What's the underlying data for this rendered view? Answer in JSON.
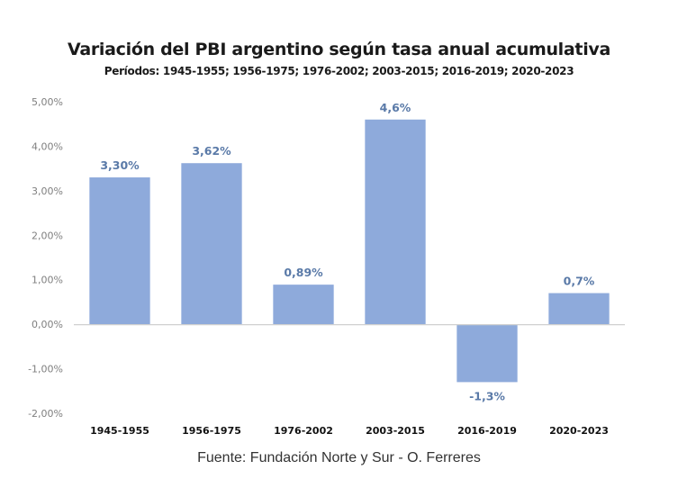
{
  "chart_data": {
    "type": "bar",
    "title": "Variación del PBI argentino según tasa anual acumulativa",
    "subtitle": "Períodos: 1945-1955; 1956-1975; 1976-2002; 2003-2015; 2016-2019; 2020-2023",
    "xlabel": "",
    "ylabel": "",
    "categories": [
      "1945-1955",
      "1956-1975",
      "1976-2002",
      "2003-2015",
      "2016-2019",
      "2020-2023"
    ],
    "values": [
      3.3,
      3.62,
      0.89,
      4.6,
      -1.3,
      0.7
    ],
    "data_labels": [
      "3,30%",
      "3,62%",
      "0,89%",
      "4,6%",
      "-1,3%",
      "0,7%"
    ],
    "ylim": [
      -2,
      5
    ],
    "yticks": [
      5,
      4,
      3,
      2,
      1,
      0,
      -1,
      -2
    ],
    "ytick_labels": [
      "5,00%",
      "4,00%",
      "3,00%",
      "2,00%",
      "1,00%",
      "0,00%",
      "-1,00%",
      "-2,00%"
    ],
    "grid": false,
    "legend": "none",
    "bar_color": "#8eaadb",
    "label_color": "#5a7aa8",
    "source": "Fuente: Fundación Norte y Sur - O. Ferreres"
  }
}
